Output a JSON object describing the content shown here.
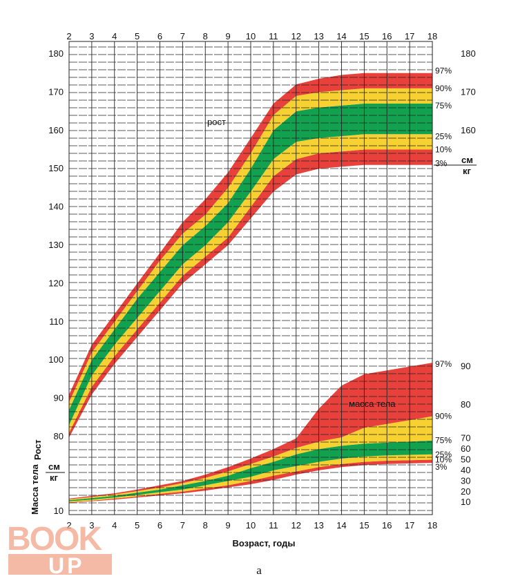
{
  "colors": {
    "red": "#e8413c",
    "yellow": "#f7d131",
    "green": "#12a14f",
    "grid": "#222222"
  },
  "watermark": {
    "line1": "BOOK",
    "line2": "UP"
  },
  "caption": "а",
  "chart_data": {
    "type": "area",
    "xlabel": "Возраст, годы",
    "x_ticks": [
      2,
      3,
      4,
      5,
      6,
      7,
      8,
      9,
      10,
      11,
      12,
      13,
      14,
      15,
      16,
      17,
      18
    ],
    "xlim": [
      2,
      18
    ],
    "grid": true,
    "left_axis": {
      "label_top": "Рост",
      "unit_top": "см",
      "unit_bottom": "кг",
      "label_bottom": "Масса тела",
      "ylim": [
        10,
        182
      ],
      "ticks": [
        10,
        80,
        90,
        100,
        110,
        120,
        130,
        140,
        150,
        160,
        170,
        180
      ]
    },
    "right_axis": {
      "unit_top": "см",
      "unit_bottom": "кг",
      "height_ticks": [
        160,
        170,
        180
      ],
      "weight_ticks": [
        10,
        20,
        30,
        40,
        50,
        60,
        70,
        80,
        90
      ],
      "weight_note": "weight kg W plotted at left-axis value 8.3 + 1.0 * W"
    },
    "percentile_labels": [
      "3%",
      "10%",
      "25%",
      "75%",
      "90%",
      "97%"
    ],
    "series": [
      {
        "name": "рост",
        "x": [
          2,
          3,
          4,
          5,
          6,
          7,
          8,
          9,
          10,
          11,
          12,
          13,
          14,
          15,
          16,
          17,
          18
        ],
        "percentiles": {
          "3%": [
            79,
            91,
            99,
            106,
            113,
            120,
            125,
            130,
            137,
            144,
            148.5,
            150,
            150.5,
            151,
            151,
            151,
            151
          ],
          "10%": [
            81,
            93,
            101,
            108,
            115,
            122,
            127,
            132,
            140,
            148,
            152.5,
            154,
            154.5,
            155,
            155,
            155,
            155
          ],
          "25%": [
            83,
            96,
            104,
            111,
            118,
            125,
            130,
            136,
            144,
            152.5,
            157,
            158,
            158.5,
            159,
            159,
            159,
            159
          ],
          "75%": [
            87,
            100,
            108,
            116,
            123,
            130,
            135,
            141,
            150,
            160,
            165,
            166,
            166.5,
            167,
            167,
            167,
            167
          ],
          "90%": [
            89,
            102,
            110,
            118,
            126,
            133,
            138,
            145,
            154,
            164,
            169,
            170,
            170.5,
            171,
            171,
            171,
            171
          ],
          "97%": [
            91,
            104,
            112,
            120,
            128,
            136,
            142,
            149,
            158,
            167,
            172,
            173.5,
            174.5,
            175,
            175,
            175,
            175
          ]
        }
      },
      {
        "name": "масса тела",
        "x": [
          2,
          3,
          4,
          5,
          6,
          7,
          8,
          9,
          10,
          11,
          12,
          13,
          14,
          15,
          16,
          17,
          18
        ],
        "percentiles": {
          "3%": [
            9.5,
            11,
            12.5,
            14.5,
            16.5,
            18.5,
            21,
            24,
            27,
            31,
            36,
            40,
            43,
            45,
            46,
            46.5,
            47
          ],
          "10%": [
            10,
            11.5,
            13.5,
            15.5,
            18,
            20,
            23,
            26,
            30,
            35,
            39,
            43,
            46,
            48,
            49,
            49.5,
            50
          ],
          "25%": [
            11,
            12.5,
            14.5,
            17,
            19.5,
            22,
            26,
            30,
            34,
            40,
            44,
            48,
            51,
            53,
            54,
            54.5,
            55
          ],
          "75%": [
            12,
            14,
            16,
            19,
            22,
            26,
            30,
            35,
            42,
            48,
            55,
            60,
            63,
            65,
            66,
            67,
            68
          ],
          "90%": [
            12.8,
            15,
            17.5,
            20.5,
            24,
            28,
            33,
            39,
            46,
            53,
            61,
            67,
            71,
            74,
            75,
            76,
            77
          ],
          "97%": [
            13.5,
            16,
            18.5,
            22,
            26,
            30,
            36,
            43,
            51,
            60,
            70,
            79,
            85,
            88,
            89,
            90,
            91
          ]
        }
      }
    ],
    "annotations": [
      "рост",
      "масса тела"
    ]
  }
}
